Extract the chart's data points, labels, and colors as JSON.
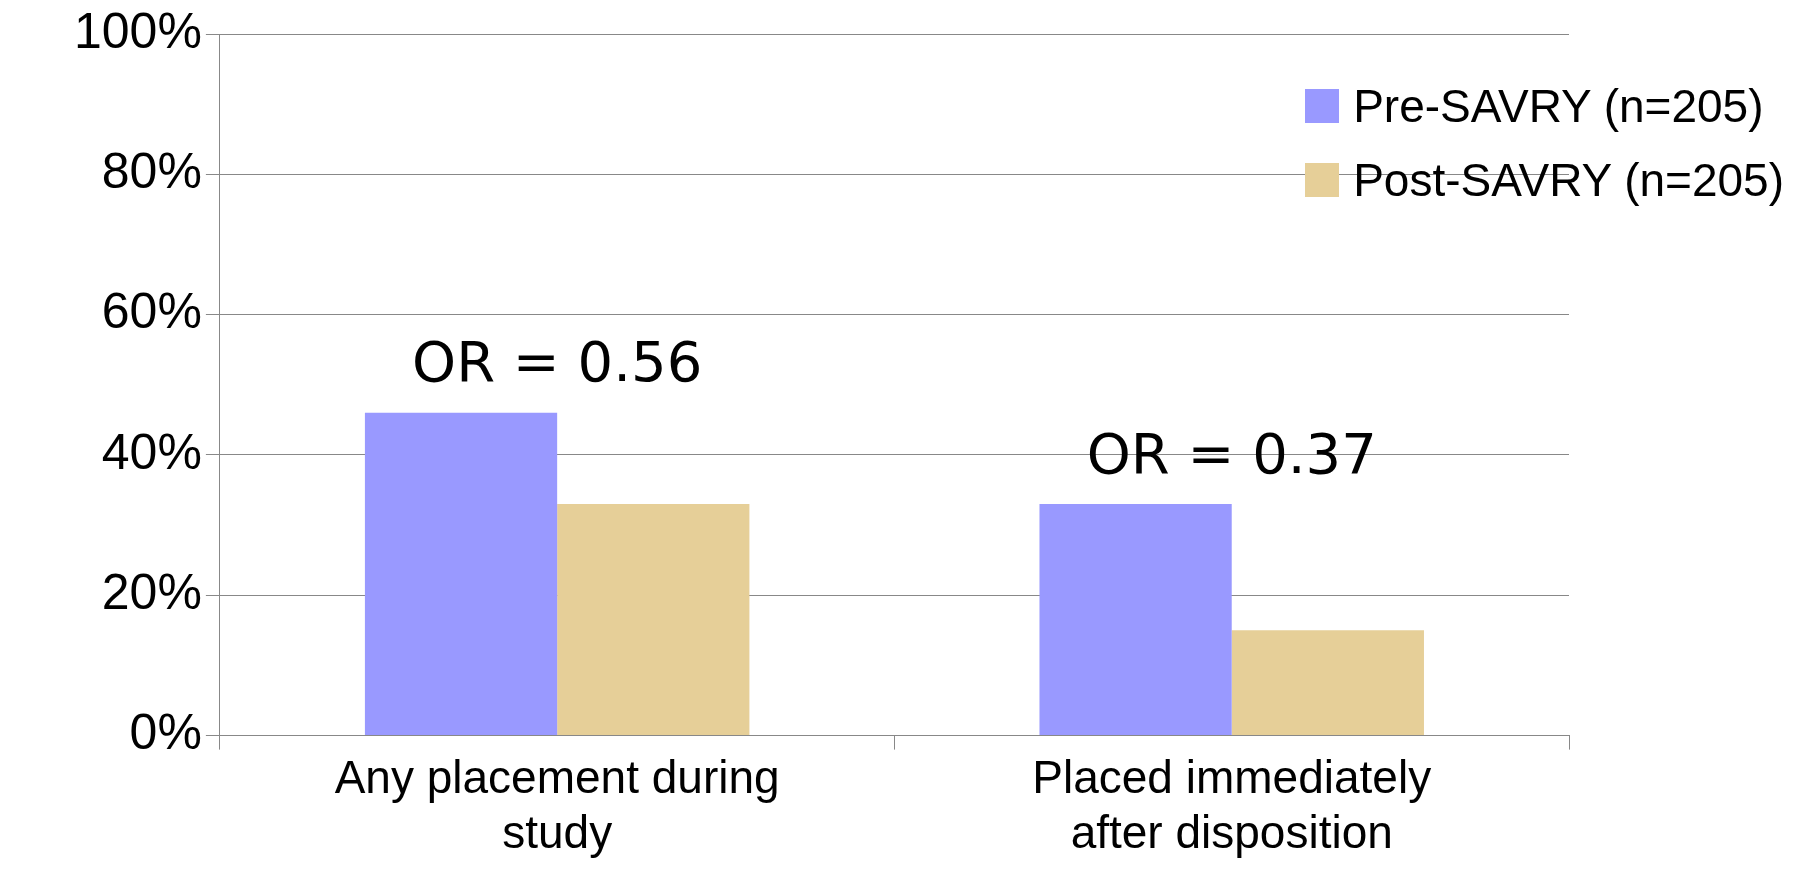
{
  "chart_data": {
    "type": "bar",
    "categories": [
      "Any placement during study",
      "Placed immediately after disposition"
    ],
    "series": [
      {
        "name": "Pre-SAVRY (n=205)",
        "color": "#9999ff",
        "values": [
          46,
          33
        ]
      },
      {
        "name": "Post-SAVRY (n=205)",
        "color": "#e6cf98",
        "values": [
          33,
          15
        ]
      }
    ],
    "ylim": [
      0,
      100
    ],
    "yticks": [
      {
        "value": 0,
        "label": "0%"
      },
      {
        "value": 20,
        "label": "20%"
      },
      {
        "value": 40,
        "label": "40%"
      },
      {
        "value": 60,
        "label": "60%"
      },
      {
        "value": 80,
        "label": "80%"
      },
      {
        "value": 100,
        "label": "100%"
      }
    ],
    "grid": "y",
    "legend": "top right",
    "annotations": [
      "OR = 0.56",
      "OR = 0.37"
    ]
  }
}
